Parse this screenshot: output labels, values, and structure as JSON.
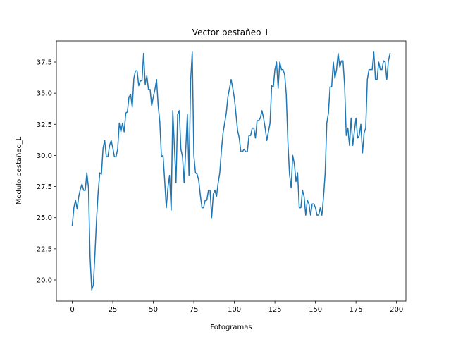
{
  "chart_data": {
    "type": "line",
    "title": "Vector pestañeo_L",
    "xlabel": "Fotogramas",
    "ylabel": "Modulo pestañeo_L",
    "xlim": [
      -9.8,
      205.8
    ],
    "ylim": [
      18.3,
      39.2
    ],
    "x_ticks": [
      0,
      25,
      50,
      75,
      100,
      125,
      150,
      175,
      200
    ],
    "y_ticks": [
      20.0,
      22.5,
      25.0,
      27.5,
      30.0,
      32.5,
      35.0,
      37.5
    ],
    "grid": false,
    "line_color": "#1f77b4",
    "series": [
      {
        "x": [
          0,
          1,
          2,
          3,
          4,
          5,
          6,
          7,
          8,
          9,
          10,
          11,
          12,
          13,
          14,
          15,
          16,
          17,
          18,
          19,
          20,
          21,
          22,
          23,
          24,
          25,
          26,
          27,
          28,
          29,
          30,
          31,
          32,
          33,
          34,
          35,
          36,
          37,
          38,
          39,
          40,
          41,
          42,
          43,
          44,
          45,
          46,
          47,
          48,
          49,
          50,
          51,
          52,
          53,
          54,
          55,
          56,
          57,
          58,
          59,
          60,
          61,
          62,
          63,
          64,
          65,
          66,
          67,
          68,
          69,
          70,
          71,
          72,
          73,
          74,
          75,
          76,
          77,
          78,
          79,
          80,
          81,
          82,
          83,
          84,
          85,
          86,
          87,
          88,
          89,
          90,
          91,
          92,
          93,
          94,
          95,
          96,
          97,
          98,
          99,
          100,
          101,
          102,
          103,
          104,
          105,
          106,
          107,
          108,
          109,
          110,
          111,
          112,
          113,
          114,
          115,
          116,
          117,
          118,
          119,
          120,
          121,
          122,
          123,
          124,
          125,
          126,
          127,
          128,
          129,
          130,
          131,
          132,
          133,
          134,
          135,
          136,
          137,
          138,
          139,
          140,
          141,
          142,
          143,
          144,
          145,
          146,
          147,
          148,
          149,
          150,
          151,
          152,
          153,
          154,
          155,
          156,
          157,
          158,
          159,
          160,
          161,
          162,
          163,
          164,
          165,
          166,
          167,
          168,
          169,
          170,
          171,
          172,
          173,
          174,
          175,
          176,
          177,
          178,
          179,
          180,
          181,
          182,
          183,
          184,
          185,
          186,
          187,
          188,
          189,
          190,
          191,
          192,
          193,
          194,
          195,
          196
        ],
        "y": [
          24.4,
          25.8,
          26.4,
          25.7,
          26.7,
          27.3,
          27.7,
          27.2,
          27.2,
          28.6,
          27.4,
          21.8,
          19.2,
          19.6,
          22.1,
          24.9,
          27.1,
          28.6,
          28.5,
          30.6,
          31.2,
          29.9,
          29.9,
          30.8,
          31.2,
          30.6,
          29.9,
          29.9,
          30.5,
          32.6,
          31.9,
          32.6,
          31.9,
          33.4,
          33.5,
          34.7,
          34.9,
          33.9,
          36.2,
          36.8,
          36.8,
          35.6,
          36.0,
          36.0,
          38.2,
          35.7,
          36.4,
          35.3,
          35.3,
          34.0,
          34.7,
          35.3,
          36.1,
          34.0,
          32.7,
          29.9,
          30.0,
          28.0,
          25.8,
          27.4,
          28.4,
          25.6,
          33.6,
          30.7,
          27.8,
          33.3,
          33.6,
          30.5,
          29.9,
          27.8,
          30.5,
          33.3,
          28.4,
          36.0,
          38.3,
          30.0,
          28.6,
          28.5,
          28.0,
          26.8,
          25.8,
          25.8,
          26.4,
          26.4,
          27.2,
          27.2,
          25.0,
          26.9,
          27.2,
          26.7,
          27.8,
          28.6,
          30.4,
          31.8,
          32.6,
          33.4,
          34.7,
          35.4,
          36.1,
          35.4,
          34.6,
          33.3,
          32.0,
          31.4,
          30.3,
          30.3,
          30.5,
          30.3,
          30.3,
          31.6,
          31.6,
          32.2,
          32.2,
          31.4,
          32.8,
          32.8,
          33.0,
          33.6,
          33.0,
          32.2,
          31.2,
          31.9,
          32.6,
          35.6,
          35.5,
          36.9,
          37.5,
          35.4,
          37.5,
          36.9,
          36.9,
          36.5,
          34.9,
          31.1,
          28.5,
          27.4,
          30.0,
          29.3,
          27.9,
          28.6,
          25.8,
          25.8,
          27.2,
          26.7,
          25.2,
          26.4,
          26.1,
          25.2,
          26.1,
          26.1,
          25.8,
          25.2,
          25.2,
          25.8,
          25.2,
          26.7,
          28.6,
          32.6,
          33.4,
          35.5,
          35.5,
          37.5,
          36.2,
          36.9,
          38.2,
          37.1,
          37.6,
          37.6,
          35.6,
          31.6,
          32.2,
          30.8,
          33.0,
          30.8,
          31.9,
          33.0,
          31.4,
          31.6,
          32.5,
          30.2,
          31.8,
          32.2,
          36.1,
          36.9,
          36.9,
          36.9,
          38.3,
          36.1,
          36.1,
          37.5,
          36.9,
          36.9,
          37.6,
          37.5,
          36.1,
          37.6,
          38.2
        ]
      }
    ]
  }
}
